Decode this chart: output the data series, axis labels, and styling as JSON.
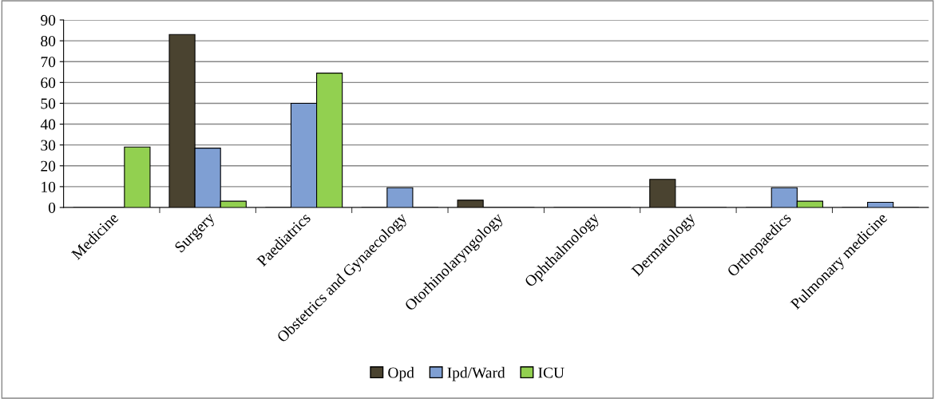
{
  "chart_data": {
    "type": "bar",
    "categories": [
      "Medicine",
      "Surgery",
      "Paediatrics",
      "Obstetrics and Gynaecology",
      "Otorhinolaryngology",
      "Ophthalmology",
      "Dermatology",
      "Orthopaedics",
      "Pulmonary medicine"
    ],
    "series": [
      {
        "name": "Opd",
        "color": "#4a4330",
        "values": [
          0,
          83,
          0,
          0,
          3.5,
          0,
          13.5,
          0,
          0
        ]
      },
      {
        "name": "Ipd/Ward",
        "color": "#7f9fd3",
        "values": [
          0,
          28.5,
          50,
          9.5,
          0,
          0,
          0,
          9.5,
          2.5
        ]
      },
      {
        "name": "ICU",
        "color": "#92d050",
        "values": [
          29,
          3,
          64.5,
          0,
          0,
          0,
          0,
          3,
          0
        ]
      }
    ],
    "ylim": [
      0,
      90
    ],
    "yticks": [
      0,
      10,
      20,
      30,
      40,
      50,
      60,
      70,
      80,
      90
    ],
    "grid": "y",
    "legend": "bottom"
  }
}
